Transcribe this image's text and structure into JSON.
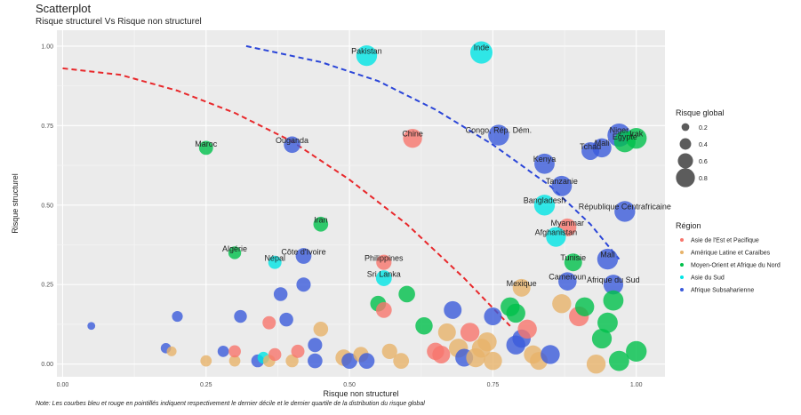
{
  "header": {
    "title": "Scatterplot",
    "subtitle": "Risque structurel Vs Risque non structurel",
    "note": "Note: Les courbes bleu et rouge en pointillés indiquent respectivement le dernier décile et le dernier quartile de la distribution du risque global"
  },
  "chart_data": {
    "type": "scatter",
    "xlabel": "Risque non structurel",
    "ylabel": "Risque structurel",
    "xlim": [
      -0.01,
      1.05
    ],
    "ylim": [
      -0.04,
      1.05
    ],
    "xticks": [
      0.0,
      0.25,
      0.5,
      0.75,
      1.0
    ],
    "xtick_labels": [
      "0.00",
      "0.25",
      "0.50",
      "0.75",
      "1.00"
    ],
    "yticks": [
      0.0,
      0.25,
      0.5,
      0.75,
      1.0
    ],
    "ytick_labels": [
      "0.00",
      "0.25",
      "0.50",
      "0.75",
      "1.00"
    ],
    "grid": true,
    "legend_position": "right",
    "size_legend": {
      "title": "Risque global",
      "values": [
        0.2,
        0.4,
        0.6,
        0.8
      ],
      "labels": [
        "0.2",
        "0.4",
        "0.6",
        "0.8"
      ]
    },
    "color_legend": {
      "title": "Région",
      "items": [
        {
          "key": "eap",
          "label": "Asie de l'Est et Pacifique",
          "color": "#F8766D"
        },
        {
          "key": "lac",
          "label": "Amérique Latine et Caraïbes",
          "color": "#E7B36A"
        },
        {
          "key": "mena",
          "label": "Moyen-Orient et Afrique du Nord",
          "color": "#00C04B"
        },
        {
          "key": "sa",
          "label": "Asie du Sud",
          "color": "#00E5E5"
        },
        {
          "key": "ssa",
          "label": "Afrique Subsaharienne",
          "color": "#3B5BDB"
        }
      ]
    },
    "curves": [
      {
        "name": "quartile",
        "color": "#e8282b",
        "points": [
          [
            0.0,
            0.93
          ],
          [
            0.1,
            0.91
          ],
          [
            0.2,
            0.86
          ],
          [
            0.3,
            0.79
          ],
          [
            0.4,
            0.7
          ],
          [
            0.5,
            0.58
          ],
          [
            0.6,
            0.44
          ],
          [
            0.7,
            0.27
          ],
          [
            0.78,
            0.12
          ]
        ]
      },
      {
        "name": "decile",
        "color": "#2a45d8",
        "points": [
          [
            0.32,
            1.0
          ],
          [
            0.45,
            0.95
          ],
          [
            0.55,
            0.89
          ],
          [
            0.65,
            0.8
          ],
          [
            0.75,
            0.69
          ],
          [
            0.85,
            0.56
          ],
          [
            0.92,
            0.44
          ],
          [
            0.97,
            0.33
          ]
        ]
      }
    ],
    "points": [
      {
        "label": "Pakistan",
        "x": 0.53,
        "y": 0.97,
        "size": 0.62,
        "region": "sa"
      },
      {
        "label": "Inde",
        "x": 0.73,
        "y": 0.98,
        "size": 0.68,
        "region": "sa"
      },
      {
        "label": "Maroc",
        "x": 0.25,
        "y": 0.68,
        "size": 0.35,
        "region": "mena"
      },
      {
        "label": "Ouganda",
        "x": 0.4,
        "y": 0.69,
        "size": 0.45,
        "region": "ssa"
      },
      {
        "label": "Chine",
        "x": 0.61,
        "y": 0.71,
        "size": 0.55,
        "region": "eap"
      },
      {
        "label": "Congo, Rép. Dém.",
        "x": 0.76,
        "y": 0.72,
        "size": 0.62,
        "region": "ssa"
      },
      {
        "label": "Niger",
        "x": 0.97,
        "y": 0.72,
        "size": 0.72,
        "region": "ssa"
      },
      {
        "label": "Mali",
        "x": 0.94,
        "y": 0.68,
        "size": 0.55,
        "region": "ssa"
      },
      {
        "label": "Irak",
        "x": 1.0,
        "y": 0.71,
        "size": 0.62,
        "region": "mena"
      },
      {
        "label": "Tchad",
        "x": 0.92,
        "y": 0.67,
        "size": 0.5,
        "region": "ssa"
      },
      {
        "label": "Egypte",
        "x": 0.98,
        "y": 0.7,
        "size": 0.65,
        "region": "mena"
      },
      {
        "label": "Kenya",
        "x": 0.84,
        "y": 0.63,
        "size": 0.6,
        "region": "ssa"
      },
      {
        "label": "Tanzanie",
        "x": 0.87,
        "y": 0.56,
        "size": 0.6,
        "region": "ssa"
      },
      {
        "label": "Bangladesh",
        "x": 0.84,
        "y": 0.5,
        "size": 0.62,
        "region": "sa"
      },
      {
        "label": "République Centrafricaine",
        "x": 0.98,
        "y": 0.48,
        "size": 0.62,
        "region": "ssa"
      },
      {
        "label": "Iran",
        "x": 0.45,
        "y": 0.44,
        "size": 0.38,
        "region": "mena"
      },
      {
        "label": "Myanmar",
        "x": 0.88,
        "y": 0.43,
        "size": 0.5,
        "region": "eap"
      },
      {
        "label": "Afghanistan",
        "x": 0.86,
        "y": 0.4,
        "size": 0.58,
        "region": "sa"
      },
      {
        "label": "Algérie",
        "x": 0.3,
        "y": 0.35,
        "size": 0.3,
        "region": "mena"
      },
      {
        "label": "Côte d'Ivoire",
        "x": 0.42,
        "y": 0.34,
        "size": 0.42,
        "region": "ssa"
      },
      {
        "label": "Népal",
        "x": 0.37,
        "y": 0.32,
        "size": 0.32,
        "region": "sa"
      },
      {
        "label": "Philippines",
        "x": 0.56,
        "y": 0.32,
        "size": 0.4,
        "region": "eap"
      },
      {
        "label": "Mali",
        "x": 0.95,
        "y": 0.33,
        "size": 0.62,
        "region": "ssa"
      },
      {
        "label": "Tunisie",
        "x": 0.89,
        "y": 0.32,
        "size": 0.5,
        "region": "mena"
      },
      {
        "label": "Sri Lanka",
        "x": 0.56,
        "y": 0.27,
        "size": 0.42,
        "region": "sa"
      },
      {
        "label": "Mexique",
        "x": 0.8,
        "y": 0.24,
        "size": 0.5,
        "region": "lac"
      },
      {
        "label": "Cameroun",
        "x": 0.88,
        "y": 0.26,
        "size": 0.52,
        "region": "ssa"
      },
      {
        "label": "Afrique du Sud",
        "x": 0.96,
        "y": 0.25,
        "size": 0.58,
        "region": "ssa"
      },
      {
        "label": "",
        "x": 0.05,
        "y": 0.12,
        "size": 0.1,
        "region": "ssa"
      },
      {
        "label": "",
        "x": 0.2,
        "y": 0.15,
        "size": 0.22,
        "region": "ssa"
      },
      {
        "label": "",
        "x": 0.18,
        "y": 0.05,
        "size": 0.2,
        "region": "ssa"
      },
      {
        "label": "",
        "x": 0.19,
        "y": 0.04,
        "size": 0.18,
        "region": "lac"
      },
      {
        "label": "",
        "x": 0.25,
        "y": 0.01,
        "size": 0.24,
        "region": "lac"
      },
      {
        "label": "",
        "x": 0.28,
        "y": 0.04,
        "size": 0.24,
        "region": "ssa"
      },
      {
        "label": "",
        "x": 0.3,
        "y": 0.01,
        "size": 0.24,
        "region": "lac"
      },
      {
        "label": "",
        "x": 0.3,
        "y": 0.04,
        "size": 0.28,
        "region": "eap"
      },
      {
        "label": "",
        "x": 0.31,
        "y": 0.15,
        "size": 0.3,
        "region": "ssa"
      },
      {
        "label": "",
        "x": 0.34,
        "y": 0.01,
        "size": 0.3,
        "region": "ssa"
      },
      {
        "label": "",
        "x": 0.35,
        "y": 0.02,
        "size": 0.26,
        "region": "sa"
      },
      {
        "label": "",
        "x": 0.36,
        "y": 0.13,
        "size": 0.32,
        "region": "eap"
      },
      {
        "label": "",
        "x": 0.36,
        "y": 0.01,
        "size": 0.28,
        "region": "lac"
      },
      {
        "label": "",
        "x": 0.37,
        "y": 0.03,
        "size": 0.3,
        "region": "eap"
      },
      {
        "label": "",
        "x": 0.38,
        "y": 0.22,
        "size": 0.34,
        "region": "ssa"
      },
      {
        "label": "",
        "x": 0.39,
        "y": 0.14,
        "size": 0.34,
        "region": "ssa"
      },
      {
        "label": "",
        "x": 0.4,
        "y": 0.01,
        "size": 0.3,
        "region": "lac"
      },
      {
        "label": "",
        "x": 0.41,
        "y": 0.04,
        "size": 0.32,
        "region": "eap"
      },
      {
        "label": "",
        "x": 0.42,
        "y": 0.25,
        "size": 0.36,
        "region": "ssa"
      },
      {
        "label": "",
        "x": 0.44,
        "y": 0.06,
        "size": 0.36,
        "region": "ssa"
      },
      {
        "label": "",
        "x": 0.44,
        "y": 0.01,
        "size": 0.38,
        "region": "ssa"
      },
      {
        "label": "",
        "x": 0.45,
        "y": 0.11,
        "size": 0.38,
        "region": "lac"
      },
      {
        "label": "",
        "x": 0.49,
        "y": 0.02,
        "size": 0.45,
        "region": "lac"
      },
      {
        "label": "",
        "x": 0.5,
        "y": 0.01,
        "size": 0.42,
        "region": "ssa"
      },
      {
        "label": "",
        "x": 0.52,
        "y": 0.03,
        "size": 0.4,
        "region": "lac"
      },
      {
        "label": "",
        "x": 0.53,
        "y": 0.01,
        "size": 0.42,
        "region": "ssa"
      },
      {
        "label": "",
        "x": 0.55,
        "y": 0.19,
        "size": 0.42,
        "region": "mena"
      },
      {
        "label": "",
        "x": 0.56,
        "y": 0.17,
        "size": 0.42,
        "region": "eap"
      },
      {
        "label": "",
        "x": 0.57,
        "y": 0.04,
        "size": 0.4,
        "region": "lac"
      },
      {
        "label": "",
        "x": 0.59,
        "y": 0.01,
        "size": 0.42,
        "region": "lac"
      },
      {
        "label": "",
        "x": 0.6,
        "y": 0.22,
        "size": 0.45,
        "region": "mena"
      },
      {
        "label": "",
        "x": 0.63,
        "y": 0.12,
        "size": 0.48,
        "region": "mena"
      },
      {
        "label": "",
        "x": 0.65,
        "y": 0.04,
        "size": 0.48,
        "region": "eap"
      },
      {
        "label": "",
        "x": 0.66,
        "y": 0.03,
        "size": 0.5,
        "region": "eap"
      },
      {
        "label": "",
        "x": 0.67,
        "y": 0.1,
        "size": 0.5,
        "region": "lac"
      },
      {
        "label": "",
        "x": 0.68,
        "y": 0.17,
        "size": 0.5,
        "region": "ssa"
      },
      {
        "label": "",
        "x": 0.69,
        "y": 0.05,
        "size": 0.55,
        "region": "lac"
      },
      {
        "label": "",
        "x": 0.7,
        "y": 0.02,
        "size": 0.5,
        "region": "ssa"
      },
      {
        "label": "",
        "x": 0.71,
        "y": 0.1,
        "size": 0.55,
        "region": "eap"
      },
      {
        "label": "",
        "x": 0.72,
        "y": 0.02,
        "size": 0.55,
        "region": "lac"
      },
      {
        "label": "",
        "x": 0.73,
        "y": 0.05,
        "size": 0.55,
        "region": "lac"
      },
      {
        "label": "",
        "x": 0.74,
        "y": 0.07,
        "size": 0.55,
        "region": "lac"
      },
      {
        "label": "",
        "x": 0.75,
        "y": 0.01,
        "size": 0.52,
        "region": "lac"
      },
      {
        "label": "",
        "x": 0.75,
        "y": 0.15,
        "size": 0.5,
        "region": "ssa"
      },
      {
        "label": "",
        "x": 0.78,
        "y": 0.18,
        "size": 0.55,
        "region": "mena"
      },
      {
        "label": "",
        "x": 0.79,
        "y": 0.16,
        "size": 0.55,
        "region": "mena"
      },
      {
        "label": "",
        "x": 0.79,
        "y": 0.06,
        "size": 0.55,
        "region": "ssa"
      },
      {
        "label": "",
        "x": 0.8,
        "y": 0.08,
        "size": 0.52,
        "region": "ssa"
      },
      {
        "label": "",
        "x": 0.81,
        "y": 0.11,
        "size": 0.55,
        "region": "eap"
      },
      {
        "label": "",
        "x": 0.82,
        "y": 0.03,
        "size": 0.52,
        "region": "lac"
      },
      {
        "label": "",
        "x": 0.83,
        "y": 0.01,
        "size": 0.5,
        "region": "lac"
      },
      {
        "label": "",
        "x": 0.85,
        "y": 0.03,
        "size": 0.55,
        "region": "ssa"
      },
      {
        "label": "",
        "x": 0.87,
        "y": 0.19,
        "size": 0.55,
        "region": "lac"
      },
      {
        "label": "",
        "x": 0.9,
        "y": 0.15,
        "size": 0.58,
        "region": "eap"
      },
      {
        "label": "",
        "x": 0.91,
        "y": 0.18,
        "size": 0.55,
        "region": "mena"
      },
      {
        "label": "",
        "x": 0.93,
        "y": 0.0,
        "size": 0.55,
        "region": "lac"
      },
      {
        "label": "",
        "x": 0.94,
        "y": 0.08,
        "size": 0.58,
        "region": "mena"
      },
      {
        "label": "",
        "x": 0.95,
        "y": 0.13,
        "size": 0.6,
        "region": "mena"
      },
      {
        "label": "",
        "x": 0.96,
        "y": 0.2,
        "size": 0.6,
        "region": "mena"
      },
      {
        "label": "",
        "x": 0.97,
        "y": 0.01,
        "size": 0.6,
        "region": "mena"
      },
      {
        "label": "",
        "x": 1.0,
        "y": 0.04,
        "size": 0.62,
        "region": "mena"
      }
    ]
  }
}
